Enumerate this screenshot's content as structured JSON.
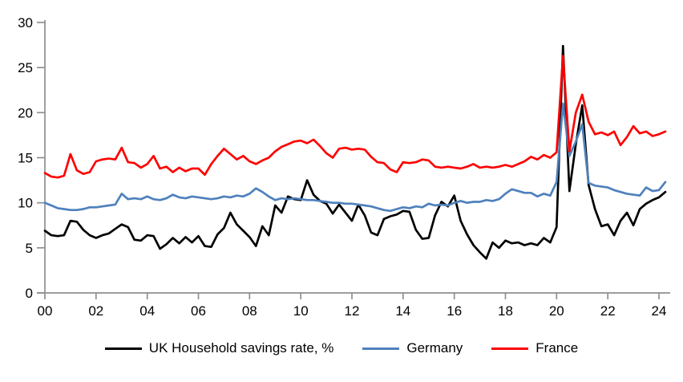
{
  "chart": {
    "background": "#ffffff",
    "axis_color": "#8f8f8f",
    "tick_label_color": "#000000"
  },
  "chart_data": {
    "type": "line",
    "title": "",
    "xlabel": "",
    "ylabel": "",
    "x_period": "quarterly",
    "x_start_year": 2000,
    "xtick_labels": [
      "00",
      "02",
      "04",
      "06",
      "08",
      "10",
      "12",
      "14",
      "16",
      "18",
      "20",
      "22",
      "24"
    ],
    "ylim": [
      0,
      30
    ],
    "ytick_step": 5,
    "ytick_labels": [
      "0",
      "5",
      "10",
      "15",
      "20",
      "25",
      "30"
    ],
    "grid": false,
    "legend_position": "bottom",
    "series": [
      {
        "name": "UK Household savings rate, %",
        "color": "#000000",
        "values": [
          6.9,
          6.4,
          6.3,
          6.4,
          8.0,
          7.9,
          7.0,
          6.4,
          6.1,
          6.4,
          6.6,
          7.1,
          7.6,
          7.3,
          5.9,
          5.8,
          6.4,
          6.3,
          4.9,
          5.4,
          6.1,
          5.5,
          6.2,
          5.6,
          6.3,
          5.2,
          5.1,
          6.5,
          7.2,
          8.9,
          7.6,
          6.9,
          6.2,
          5.2,
          7.4,
          6.4,
          9.7,
          8.9,
          10.7,
          10.4,
          10.3,
          12.5,
          10.9,
          10.2,
          9.9,
          8.8,
          9.8,
          8.9,
          8.0,
          9.8,
          8.6,
          6.7,
          6.4,
          8.2,
          8.5,
          8.7,
          9.1,
          9.0,
          7.0,
          6.0,
          6.1,
          8.6,
          10.1,
          9.6,
          10.8,
          8.0,
          6.5,
          5.3,
          4.5,
          3.8,
          5.6,
          5.0,
          5.8,
          5.5,
          5.6,
          5.3,
          5.5,
          5.3,
          6.1,
          5.6,
          7.3,
          27.4,
          11.3,
          16.5,
          20.8,
          12.0,
          9.3,
          7.4,
          7.6,
          6.4,
          8.0,
          8.9,
          7.5,
          9.3,
          9.9,
          10.3,
          10.6,
          11.2
        ]
      },
      {
        "name": "Germany",
        "color": "#4e81bc",
        "values": [
          10.0,
          9.7,
          9.4,
          9.3,
          9.2,
          9.2,
          9.3,
          9.5,
          9.5,
          9.6,
          9.7,
          9.8,
          11.0,
          10.4,
          10.5,
          10.4,
          10.7,
          10.4,
          10.3,
          10.5,
          10.9,
          10.6,
          10.5,
          10.7,
          10.6,
          10.5,
          10.4,
          10.5,
          10.7,
          10.6,
          10.8,
          10.7,
          11.0,
          11.6,
          11.2,
          10.7,
          10.3,
          10.5,
          10.4,
          10.5,
          10.4,
          10.3,
          10.3,
          10.2,
          10.1,
          10.0,
          10.0,
          9.9,
          9.9,
          9.8,
          9.7,
          9.6,
          9.4,
          9.2,
          9.1,
          9.3,
          9.5,
          9.4,
          9.6,
          9.5,
          9.9,
          9.7,
          9.8,
          9.7,
          10.0,
          10.2,
          10.0,
          10.1,
          10.1,
          10.3,
          10.2,
          10.4,
          11.0,
          11.5,
          11.3,
          11.1,
          11.1,
          10.7,
          11.0,
          10.8,
          12.3,
          21.0,
          15.2,
          16.8,
          18.7,
          12.2,
          11.9,
          11.8,
          11.7,
          11.4,
          11.2,
          11.0,
          10.9,
          10.8,
          11.7,
          11.3,
          11.4,
          12.3
        ]
      },
      {
        "name": "France",
        "color": "#fe0000",
        "values": [
          13.3,
          12.9,
          12.8,
          13.0,
          15.4,
          13.6,
          13.2,
          13.4,
          14.6,
          14.8,
          14.9,
          14.8,
          16.1,
          14.5,
          14.4,
          13.9,
          14.3,
          15.2,
          13.8,
          14.0,
          13.4,
          13.9,
          13.5,
          13.8,
          13.8,
          13.1,
          14.3,
          15.2,
          16.0,
          15.4,
          14.8,
          15.2,
          14.6,
          14.3,
          14.7,
          15.0,
          15.7,
          16.2,
          16.5,
          16.8,
          16.9,
          16.6,
          17.0,
          16.3,
          15.5,
          15.0,
          16.0,
          16.1,
          15.9,
          16.0,
          15.9,
          15.1,
          14.5,
          14.4,
          13.7,
          13.4,
          14.5,
          14.4,
          14.5,
          14.8,
          14.7,
          14.0,
          13.9,
          14.0,
          13.9,
          13.8,
          14.0,
          14.3,
          13.9,
          14.0,
          13.9,
          14.0,
          14.2,
          14.0,
          14.3,
          14.6,
          15.1,
          14.8,
          15.3,
          15.0,
          15.6,
          26.3,
          15.7,
          20.0,
          22.0,
          19.0,
          17.6,
          17.8,
          17.5,
          17.9,
          16.4,
          17.3,
          18.5,
          17.7,
          17.9,
          17.4,
          17.6,
          17.9
        ]
      }
    ]
  }
}
